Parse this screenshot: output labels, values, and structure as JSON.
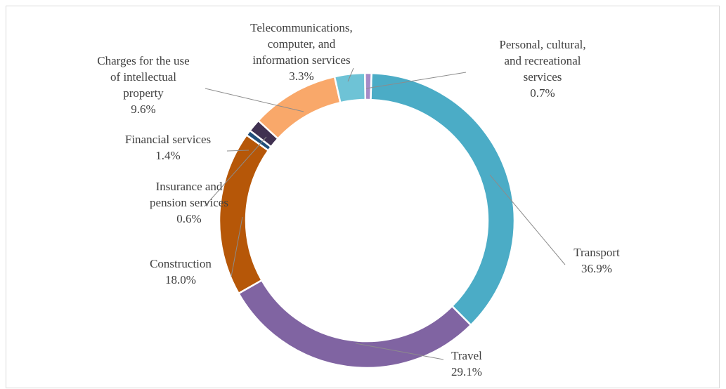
{
  "chart_data": {
    "type": "pie",
    "style": "donut",
    "title": "",
    "legend": "none",
    "slices": [
      {
        "name": "Transport",
        "value": 36.9,
        "label": "36.9%",
        "color": "#4bacc6"
      },
      {
        "name": "Travel",
        "value": 29.1,
        "label": "29.1%",
        "color": "#8064a2"
      },
      {
        "name": "Construction",
        "value": 18.0,
        "label": "18.0%",
        "color": "#b65708"
      },
      {
        "name": "Insurance and pension services",
        "value": 0.6,
        "label": "0.6%",
        "color": "#1f4e79"
      },
      {
        "name": "Financial services",
        "value": 1.4,
        "label": "1.4%",
        "color": "#403151"
      },
      {
        "name": "Charges for the use of intellectual property",
        "value": 9.6,
        "label": "9.6%",
        "color": "#f9a86a"
      },
      {
        "name": "Telecommunications, computer, and information services",
        "value": 3.3,
        "label": "3.3%",
        "color": "#6ec3d6"
      },
      {
        "name": "Personal, cultural, and recreational services",
        "value": 0.7,
        "label": "0.7%",
        "color": "#a68bc7"
      }
    ],
    "display_labels": [
      [
        "Transport",
        "36.9%"
      ],
      [
        "Travel",
        "29.1%"
      ],
      [
        "Construction",
        "18.0%"
      ],
      [
        "Insurance and",
        "pension services",
        "0.6%"
      ],
      [
        "Financial services",
        "1.4%"
      ],
      [
        "Charges for the use",
        "of intellectual",
        "property",
        "9.6%"
      ],
      [
        "Telecommunications,",
        "computer, and",
        "information services",
        "3.3%"
      ],
      [
        "Personal, cultural,",
        "and recreational",
        "services",
        "0.7%"
      ]
    ]
  }
}
